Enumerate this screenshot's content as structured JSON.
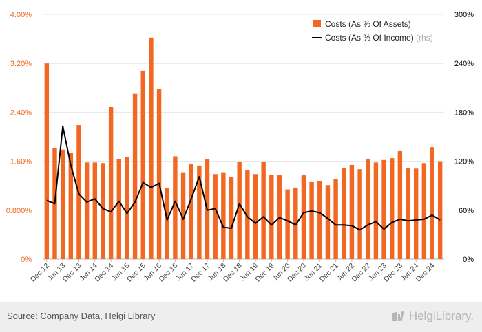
{
  "chart_data": {
    "type": "bar",
    "categories": [
      "Dec 12",
      "Mar 13",
      "Jun 13",
      "Sep 13",
      "Dec 13",
      "Mar 14",
      "Jun 14",
      "Sep 14",
      "Dec 14",
      "Mar 15",
      "Jun 15",
      "Sep 15",
      "Dec 15",
      "Mar 16",
      "Jun 16",
      "Sep 16",
      "Dec 16",
      "Mar 17",
      "Jun 17",
      "Sep 17",
      "Dec 17",
      "Mar 18",
      "Jun 18",
      "Sep 18",
      "Dec 18",
      "Mar 19",
      "Jun 19",
      "Sep 19",
      "Dec 19",
      "Mar 20",
      "Jun 20",
      "Sep 20",
      "Dec 20",
      "Mar 21",
      "Jun 21",
      "Sep 21",
      "Dec 21",
      "Mar 22",
      "Jun 22",
      "Sep 22",
      "Dec 22",
      "Mar 23",
      "Jun 23",
      "Sep 23",
      "Dec 23",
      "Mar 24",
      "Jun 24",
      "Sep 24",
      "Dec 24",
      "Mar 25"
    ],
    "x_tick_labels": [
      "Dec 12",
      "Jun 13",
      "Dec 13",
      "Jun 14",
      "Dec 14",
      "Jun 15",
      "Dec 15",
      "Jun 16",
      "Dec 16",
      "Jun 17",
      "Dec 17",
      "Jun 18",
      "Dec 18",
      "Jun 19",
      "Dec 19",
      "Jun 20",
      "Dec 20",
      "Jun 21",
      "Dec 21",
      "Jun 22",
      "Dec 22",
      "Jun 23",
      "Dec 23",
      "Jun 24",
      "Dec 24"
    ],
    "series": [
      {
        "name": "Costs (As % Of Assets)",
        "type": "bar",
        "axis": "left",
        "color": "#f26722",
        "values": [
          3.2,
          1.81,
          1.79,
          1.73,
          2.19,
          1.58,
          1.58,
          1.57,
          2.49,
          1.63,
          1.67,
          2.7,
          3.08,
          3.62,
          2.78,
          1.16,
          1.68,
          1.42,
          1.55,
          1.53,
          1.63,
          1.39,
          1.42,
          1.34,
          1.59,
          1.45,
          1.39,
          1.59,
          1.38,
          1.37,
          1.14,
          1.17,
          1.37,
          1.26,
          1.27,
          1.21,
          1.31,
          1.49,
          1.54,
          1.47,
          1.64,
          1.58,
          1.62,
          1.65,
          1.77,
          1.49,
          1.48,
          1.57,
          1.83,
          1.6
        ]
      },
      {
        "name": "Costs (As % Of Income)",
        "name_suffix": "(rhs)",
        "type": "line",
        "axis": "right",
        "color": "#000000",
        "values": [
          72,
          68,
          163,
          115,
          80,
          70,
          74,
          62,
          58,
          71,
          56,
          70,
          94,
          88,
          93,
          48,
          71,
          49,
          74,
          101,
          60,
          62,
          39,
          38,
          68,
          52,
          44,
          52,
          42,
          51,
          47,
          42,
          57,
          59,
          57,
          50,
          42,
          42,
          41,
          36,
          42,
          46,
          37,
          45,
          49,
          47,
          48,
          49,
          54,
          48
        ]
      }
    ],
    "y_left": {
      "min": 0,
      "max": 4.0,
      "ticks": [
        "0%",
        "0.800%",
        "1.60%",
        "2.40%",
        "3.20%",
        "4.00%"
      ],
      "tick_color": "#f26722"
    },
    "y_right": {
      "min": 0,
      "max": 300,
      "ticks": [
        "0%",
        "60%",
        "120%",
        "180%",
        "240%",
        "300%"
      ],
      "tick_color": "#000000"
    },
    "grid": true,
    "legend_position": "top-right"
  },
  "footer": {
    "source": "Source: Company Data, Helgi Library",
    "brand": "HelgiLibrary.",
    "brand_icon": "library-books-icon"
  }
}
